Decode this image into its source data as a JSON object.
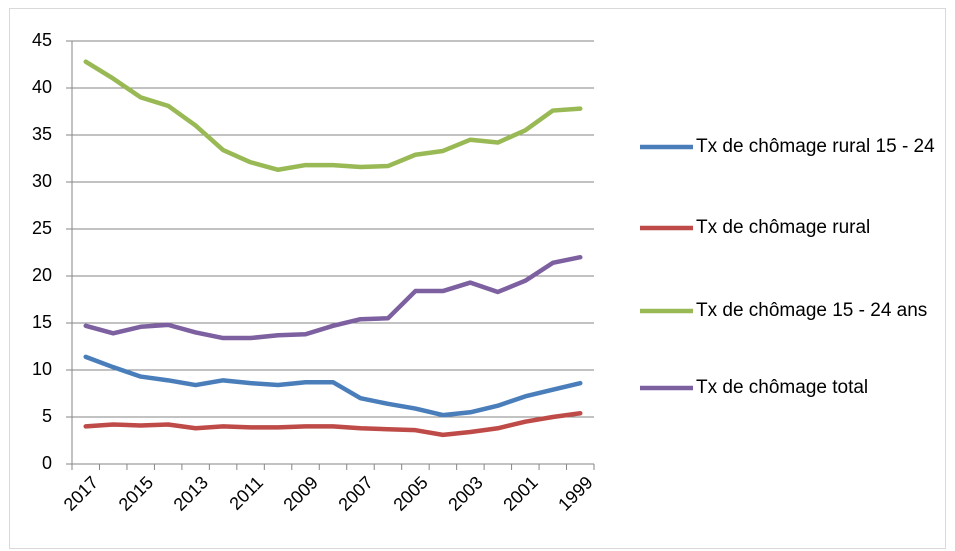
{
  "chart_data": {
    "type": "line",
    "categories": [
      "2017",
      null,
      "2015",
      null,
      "2013",
      null,
      "2011",
      null,
      "2009",
      null,
      "2007",
      null,
      "2005",
      null,
      "2003",
      null,
      "2001",
      null,
      "1999"
    ],
    "series": [
      {
        "name": "Tx de chômage rural 15 - 24",
        "color": "#4a7ebb",
        "values": [
          11.4,
          10.3,
          9.3,
          8.9,
          8.4,
          8.9,
          8.6,
          8.4,
          8.7,
          8.7,
          7.0,
          6.4,
          5.9,
          5.2,
          5.5,
          6.2,
          7.2,
          7.9,
          8.6
        ]
      },
      {
        "name": "Tx de chômage rural",
        "color": "#be4b48",
        "values": [
          4.0,
          4.2,
          4.1,
          4.2,
          3.8,
          4.0,
          3.9,
          3.9,
          4.0,
          4.0,
          3.8,
          3.7,
          3.6,
          3.1,
          3.4,
          3.8,
          4.5,
          5.0,
          5.4
        ]
      },
      {
        "name": "Tx de chômage 15 - 24 ans",
        "color": "#98b954",
        "values": [
          42.8,
          41.0,
          39.0,
          38.1,
          36.0,
          33.4,
          32.1,
          31.3,
          31.8,
          31.8,
          31.6,
          31.7,
          32.9,
          33.3,
          34.5,
          34.2,
          35.5,
          37.6,
          37.8
        ]
      },
      {
        "name": "Tx de chômage total",
        "color": "#7d60a0",
        "values": [
          14.7,
          13.9,
          14.6,
          14.8,
          14.0,
          13.4,
          13.4,
          13.7,
          13.8,
          14.7,
          15.4,
          15.5,
          18.4,
          18.4,
          19.3,
          18.3,
          19.5,
          21.4,
          22.0
        ]
      }
    ],
    "ylim": [
      0,
      45
    ],
    "yticks": [
      0,
      5,
      10,
      15,
      20,
      25,
      30,
      35,
      40,
      45
    ],
    "grid": true,
    "legend": "right"
  }
}
